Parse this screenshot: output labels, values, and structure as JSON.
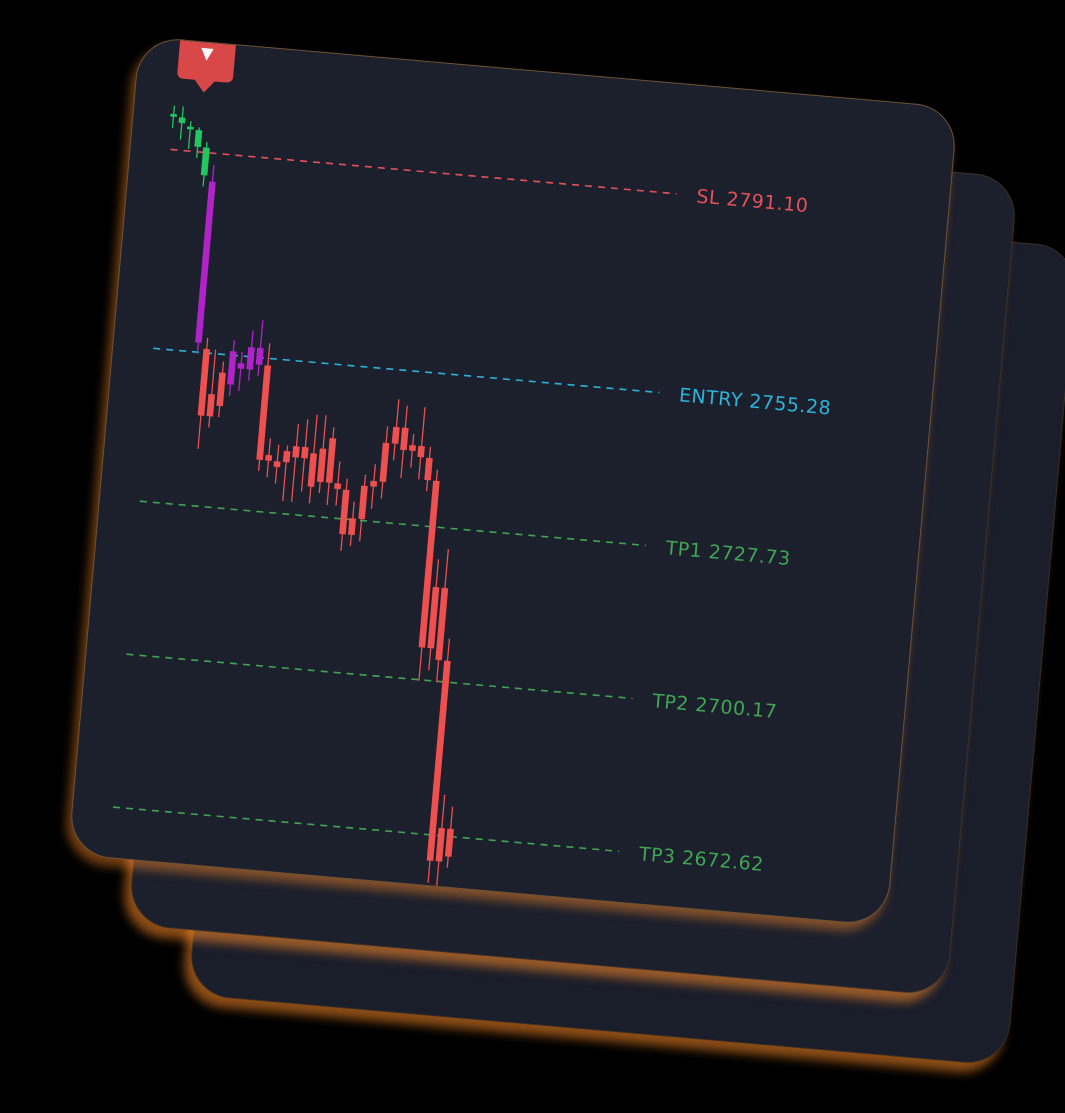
{
  "colors": {
    "sl": "#e5515a",
    "entry": "#2fb2d8",
    "tp": "#3fa653",
    "bull": "#22c55e",
    "bear": "#ee4f4f",
    "purple": "#b023c8",
    "marker": "#d94848"
  },
  "marker": {
    "icon": "sell-signal-icon",
    "glyph": "▼"
  },
  "chart_data": {
    "type": "candlestick",
    "ylim": [
      2660,
      2800
    ],
    "levels": [
      {
        "name": "SL",
        "value": 2791.1,
        "label": "SL 2791.10",
        "color": "sl"
      },
      {
        "name": "ENTRY",
        "value": 2755.28,
        "label": "ENTRY 2755.28",
        "color": "entry"
      },
      {
        "name": "TP1",
        "value": 2727.73,
        "label": "TP1 2727.73",
        "color": "tp"
      },
      {
        "name": "TP2",
        "value": 2700.17,
        "label": "TP2 2700.17",
        "color": "tp"
      },
      {
        "name": "TP3",
        "value": 2672.62,
        "label": "TP3 2672.62",
        "color": "tp"
      }
    ],
    "candles": [
      {
        "o": 2797.0,
        "h": 2799.0,
        "l": 2795.0,
        "c": 2797.5,
        "color": "bull"
      },
      {
        "o": 2796.0,
        "h": 2799.0,
        "l": 2793.0,
        "c": 2797.0,
        "color": "bull"
      },
      {
        "o": 2795.0,
        "h": 2796.5,
        "l": 2791.5,
        "c": 2795.5,
        "color": "bull"
      },
      {
        "o": 2792.0,
        "h": 2795.5,
        "l": 2790.0,
        "c": 2795.0,
        "color": "bull"
      },
      {
        "o": 2787.0,
        "h": 2793.0,
        "l": 2785.0,
        "c": 2792.0,
        "color": "bull"
      },
      {
        "o": 2786.0,
        "h": 2789.0,
        "l": 2755.0,
        "c": 2757.0,
        "color": "purple"
      },
      {
        "o": 2756.0,
        "h": 2758.0,
        "l": 2738.0,
        "c": 2744.0,
        "color": "bear"
      },
      {
        "o": 2744.0,
        "h": 2756.0,
        "l": 2742.0,
        "c": 2748.0,
        "color": "bear"
      },
      {
        "o": 2746.0,
        "h": 2754.0,
        "l": 2744.0,
        "c": 2752.0,
        "color": "bear"
      },
      {
        "o": 2750.0,
        "h": 2758.0,
        "l": 2748.0,
        "c": 2756.0,
        "color": "purple"
      },
      {
        "o": 2754.0,
        "h": 2756.0,
        "l": 2749.0,
        "c": 2753.0,
        "color": "purple"
      },
      {
        "o": 2753.0,
        "h": 2760.0,
        "l": 2751.0,
        "c": 2757.0,
        "color": "purple"
      },
      {
        "o": 2757.0,
        "h": 2762.0,
        "l": 2752.0,
        "c": 2754.0,
        "color": "purple"
      },
      {
        "o": 2754.0,
        "h": 2758.0,
        "l": 2735.0,
        "c": 2737.0,
        "color": "bear"
      },
      {
        "o": 2738.0,
        "h": 2741.0,
        "l": 2734.0,
        "c": 2737.0,
        "color": "bear"
      },
      {
        "o": 2736.0,
        "h": 2740.0,
        "l": 2733.0,
        "c": 2737.0,
        "color": "bear"
      },
      {
        "o": 2737.0,
        "h": 2740.0,
        "l": 2730.0,
        "c": 2739.0,
        "color": "bear"
      },
      {
        "o": 2738.0,
        "h": 2744.0,
        "l": 2730.0,
        "c": 2740.0,
        "color": "bear"
      },
      {
        "o": 2740.0,
        "h": 2745.0,
        "l": 2732.0,
        "c": 2738.0,
        "color": "bear"
      },
      {
        "o": 2739.0,
        "h": 2746.0,
        "l": 2730.0,
        "c": 2733.0,
        "color": "bear"
      },
      {
        "o": 2740.0,
        "h": 2746.0,
        "l": 2732.0,
        "c": 2734.0,
        "color": "bear"
      },
      {
        "o": 2742.0,
        "h": 2744.0,
        "l": 2730.0,
        "c": 2734.0,
        "color": "bear"
      },
      {
        "o": 2734.0,
        "h": 2738.0,
        "l": 2730.0,
        "c": 2733.0,
        "color": "bear"
      },
      {
        "o": 2733.0,
        "h": 2735.0,
        "l": 2722.0,
        "c": 2725.0,
        "color": "bear"
      },
      {
        "o": 2725.0,
        "h": 2731.0,
        "l": 2723.0,
        "c": 2728.0,
        "color": "bear"
      },
      {
        "o": 2728.0,
        "h": 2736.0,
        "l": 2724.0,
        "c": 2734.0,
        "color": "bear"
      },
      {
        "o": 2734.0,
        "h": 2738.0,
        "l": 2730.0,
        "c": 2735.0,
        "color": "bear"
      },
      {
        "o": 2735.0,
        "h": 2745.0,
        "l": 2732.0,
        "c": 2742.0,
        "color": "bear"
      },
      {
        "o": 2742.0,
        "h": 2750.0,
        "l": 2739.0,
        "c": 2745.0,
        "color": "bear"
      },
      {
        "o": 2745.0,
        "h": 2749.0,
        "l": 2736.0,
        "c": 2741.0,
        "color": "bear"
      },
      {
        "o": 2741.0,
        "h": 2744.0,
        "l": 2738.0,
        "c": 2742.0,
        "color": "bear"
      },
      {
        "o": 2742.0,
        "h": 2749.0,
        "l": 2736.0,
        "c": 2740.0,
        "color": "bear"
      },
      {
        "o": 2740.0,
        "h": 2742.0,
        "l": 2734.0,
        "c": 2736.0,
        "color": "bear"
      },
      {
        "o": 2736.0,
        "h": 2738.0,
        "l": 2700.0,
        "c": 2706.0,
        "color": "bear"
      },
      {
        "o": 2706.0,
        "h": 2722.0,
        "l": 2702.0,
        "c": 2717.0,
        "color": "bear"
      },
      {
        "o": 2717.0,
        "h": 2724.0,
        "l": 2700.0,
        "c": 2704.0,
        "color": "bear"
      },
      {
        "o": 2704.0,
        "h": 2708.0,
        "l": 2664.0,
        "c": 2668.0,
        "color": "bear"
      },
      {
        "o": 2668.0,
        "h": 2680.0,
        "l": 2663.0,
        "c": 2674.0,
        "color": "bear"
      },
      {
        "o": 2674.0,
        "h": 2678.0,
        "l": 2667.0,
        "c": 2669.0,
        "color": "bear"
      }
    ]
  }
}
